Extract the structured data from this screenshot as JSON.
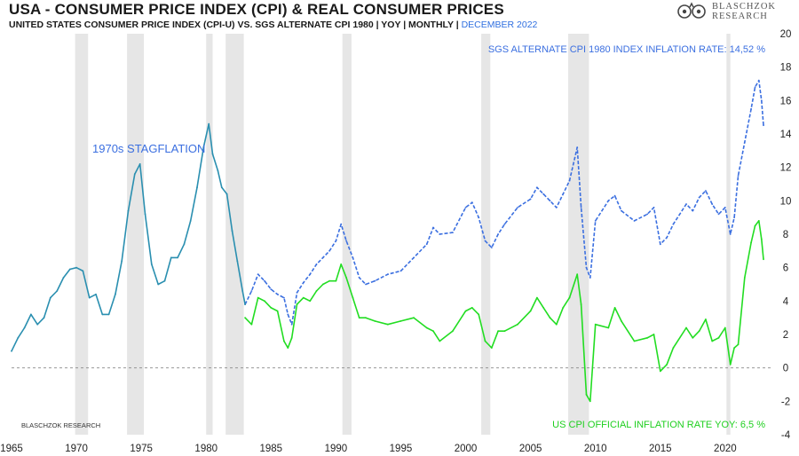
{
  "header": {
    "title": "USA - CONSUMER PRICE INDEX (CPI) & REAL CONSUMER PRICES",
    "subtitle_main": "UNITED STATES CONSUMER PRICE INDEX (CPI-U) VS. SGS ALTERNATE CPI 1980  | YOY | MONTHLY | ",
    "subtitle_date": "DECEMBER 2022"
  },
  "logo": {
    "line1": "BLASCHZOK",
    "line2": "RESEARCH"
  },
  "watermark": "BLASCHZOK  RESEARCH",
  "colors": {
    "sgs": "#3b6fe0",
    "cpi": "#22dd22",
    "shared": "#2a8fb0",
    "recession": "#e6e6e6",
    "zero_line": "#888888"
  },
  "chart_data": {
    "type": "line",
    "xlim": [
      1965,
      2023.5
    ],
    "ylim": [
      -4,
      20
    ],
    "x_ticks": [
      "1965",
      "1970",
      "1975",
      "1980",
      "1985",
      "1990",
      "1995",
      "2000",
      "2005",
      "2010",
      "2015",
      "2020"
    ],
    "y_ticks": [
      "-4",
      "-2",
      "0",
      "2",
      "4",
      "6",
      "8",
      "10",
      "12",
      "14",
      "16",
      "18",
      "20"
    ],
    "recessions": [
      [
        1969.9,
        1970.9
      ],
      [
        1973.9,
        1975.2
      ],
      [
        1980.0,
        1980.5
      ],
      [
        1981.5,
        1982.9
      ],
      [
        1990.5,
        1991.2
      ],
      [
        2001.2,
        2001.9
      ],
      [
        2007.9,
        2009.5
      ],
      [
        2020.1,
        2020.4
      ]
    ],
    "annotations": {
      "stagflation": "1970s STAGFLATION",
      "sgs_label": "SGS ALTERNATE CPI 1980 INDEX INFLATION RATE: 14,52 %",
      "cpi_label": "US CPI OFFICIAL INFLATION RATE YOY: 6,5 %"
    },
    "series": [
      {
        "name": "SGS ALTERNATE CPI 1980 INDEX INFLATION RATE: 14,52 %",
        "style": "dashed",
        "x": [
          1983.0,
          1983.5,
          1984.0,
          1984.5,
          1985.0,
          1985.5,
          1986.0,
          1986.3,
          1986.6,
          1987.0,
          1987.5,
          1988.0,
          1988.5,
          1989.0,
          1989.5,
          1990.0,
          1990.4,
          1990.8,
          1991.3,
          1991.8,
          1992.3,
          1993.0,
          1994.0,
          1995.0,
          1996.0,
          1997.0,
          1997.5,
          1998.0,
          1999.0,
          2000.0,
          2000.5,
          2001.0,
          2001.5,
          2002.0,
          2002.5,
          2003.0,
          2004.0,
          2005.0,
          2005.5,
          2006.0,
          2006.5,
          2007.0,
          2007.5,
          2008.0,
          2008.6,
          2008.9,
          2009.3,
          2009.6,
          2010.0,
          2011.0,
          2011.5,
          2012.0,
          2013.0,
          2014.0,
          2014.5,
          2015.0,
          2015.5,
          2016.0,
          2017.0,
          2017.5,
          2018.0,
          2018.5,
          2019.0,
          2019.5,
          2020.0,
          2020.4,
          2020.7,
          2021.0,
          2021.5,
          2022.0,
          2022.3,
          2022.6,
          2022.8,
          2022.95
        ],
        "y": [
          3.8,
          4.6,
          5.6,
          5.2,
          4.7,
          4.4,
          4.2,
          3.2,
          2.6,
          4.5,
          5.1,
          5.6,
          6.2,
          6.6,
          7.0,
          7.6,
          8.6,
          7.6,
          6.6,
          5.4,
          5.0,
          5.2,
          5.6,
          5.8,
          6.6,
          7.4,
          8.4,
          8.0,
          8.1,
          9.6,
          9.9,
          9.0,
          7.6,
          7.2,
          8.0,
          8.6,
          9.6,
          10.1,
          10.8,
          10.4,
          10.0,
          9.6,
          10.4,
          11.2,
          13.2,
          9.6,
          6.0,
          5.4,
          8.8,
          10.0,
          10.3,
          9.4,
          8.8,
          9.2,
          9.6,
          7.4,
          7.8,
          8.6,
          9.8,
          9.4,
          10.2,
          10.6,
          9.8,
          9.2,
          9.6,
          8.0,
          9.0,
          11.5,
          13.5,
          15.5,
          16.8,
          17.2,
          16.0,
          14.52
        ]
      },
      {
        "name": "US CPI OFFICIAL INFLATION RATE YOY: 6,5 %",
        "style": "solid",
        "x": [
          1983.0,
          1983.5,
          1984.0,
          1984.5,
          1985.0,
          1985.5,
          1986.0,
          1986.3,
          1986.6,
          1987.0,
          1987.5,
          1988.0,
          1988.5,
          1989.0,
          1989.5,
          1990.0,
          1990.4,
          1990.8,
          1991.3,
          1991.8,
          1992.3,
          1993.0,
          1994.0,
          1995.0,
          1996.0,
          1997.0,
          1997.5,
          1998.0,
          1999.0,
          2000.0,
          2000.5,
          2001.0,
          2001.5,
          2002.0,
          2002.5,
          2003.0,
          2004.0,
          2005.0,
          2005.5,
          2006.0,
          2006.5,
          2007.0,
          2007.5,
          2008.0,
          2008.6,
          2008.9,
          2009.3,
          2009.6,
          2010.0,
          2011.0,
          2011.5,
          2012.0,
          2013.0,
          2014.0,
          2014.5,
          2015.0,
          2015.5,
          2016.0,
          2017.0,
          2017.5,
          2018.0,
          2018.5,
          2019.0,
          2019.5,
          2020.0,
          2020.4,
          2020.7,
          2021.0,
          2021.5,
          2022.0,
          2022.3,
          2022.6,
          2022.8,
          2022.95
        ],
        "y": [
          3.0,
          2.6,
          4.2,
          4.0,
          3.6,
          3.4,
          1.6,
          1.2,
          1.8,
          3.8,
          4.2,
          4.0,
          4.6,
          5.0,
          5.2,
          5.2,
          6.2,
          5.4,
          4.2,
          3.0,
          3.0,
          2.8,
          2.6,
          2.8,
          3.0,
          2.4,
          2.2,
          1.6,
          2.2,
          3.4,
          3.6,
          3.2,
          1.6,
          1.2,
          2.2,
          2.2,
          2.6,
          3.4,
          4.2,
          3.6,
          3.0,
          2.6,
          3.6,
          4.2,
          5.6,
          3.8,
          -1.6,
          -2.0,
          2.6,
          2.4,
          3.6,
          2.8,
          1.6,
          1.8,
          2.0,
          -0.2,
          0.2,
          1.2,
          2.4,
          1.8,
          2.2,
          2.9,
          1.6,
          1.8,
          2.4,
          0.2,
          1.2,
          1.4,
          5.4,
          7.5,
          8.5,
          8.8,
          7.7,
          6.5
        ]
      },
      {
        "name": "",
        "style": "solid",
        "x": [
          1965.0,
          1965.5,
          1966.0,
          1966.5,
          1967.0,
          1967.5,
          1968.0,
          1968.5,
          1969.0,
          1969.5,
          1970.0,
          1970.5,
          1971.0,
          1971.5,
          1972.0,
          1972.5,
          1973.0,
          1973.5,
          1974.0,
          1974.5,
          1974.9,
          1975.3,
          1975.8,
          1976.3,
          1976.8,
          1977.3,
          1977.8,
          1978.3,
          1978.8,
          1979.3,
          1979.8,
          1980.2,
          1980.5,
          1980.9,
          1981.2,
          1981.6,
          1982.0,
          1982.4,
          1982.8,
          1983.0
        ],
        "y": [
          1.0,
          1.8,
          2.4,
          3.2,
          2.6,
          3.0,
          4.2,
          4.6,
          5.4,
          5.9,
          6.0,
          5.8,
          4.2,
          4.4,
          3.2,
          3.2,
          4.4,
          6.4,
          9.4,
          11.6,
          12.2,
          9.2,
          6.2,
          5.0,
          5.2,
          6.6,
          6.6,
          7.4,
          8.8,
          10.8,
          13.2,
          14.6,
          12.8,
          11.8,
          10.8,
          10.4,
          8.2,
          6.4,
          4.6,
          3.8
        ]
      }
    ]
  }
}
